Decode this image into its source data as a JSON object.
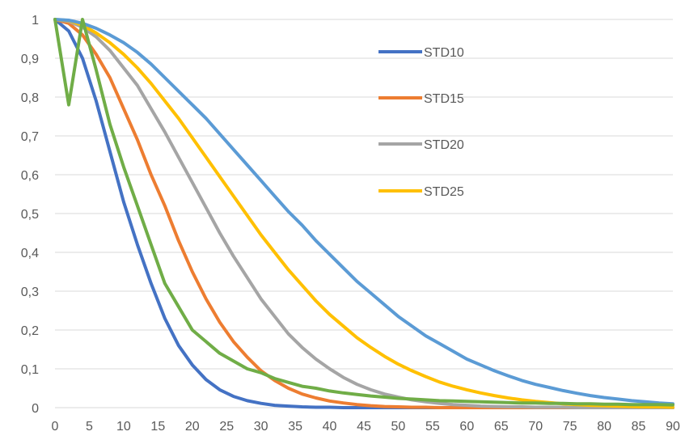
{
  "chart_data": {
    "type": "line",
    "title": "",
    "xlabel": "",
    "ylabel": "",
    "xlim": [
      0,
      90
    ],
    "ylim": [
      0,
      1
    ],
    "x_ticks": [
      "0",
      "5",
      "10",
      "15",
      "20",
      "25",
      "30",
      "35",
      "40",
      "45",
      "50",
      "55",
      "60",
      "65",
      "70",
      "75",
      "80",
      "85",
      "90"
    ],
    "y_ticks": [
      "0",
      "0,1",
      "0,2",
      "0,3",
      "0,4",
      "0,5",
      "0,6",
      "0,7",
      "0,8",
      "0,9",
      "1"
    ],
    "grid": "horizontal",
    "legend_position": "top-right",
    "x": [
      0,
      2,
      4,
      6,
      8,
      10,
      12,
      14,
      16,
      18,
      20,
      22,
      24,
      26,
      28,
      30,
      32,
      34,
      36,
      38,
      40,
      42,
      44,
      46,
      48,
      50,
      52,
      54,
      56,
      58,
      60,
      62,
      64,
      66,
      68,
      70,
      72,
      74,
      76,
      78,
      80,
      82,
      84,
      86,
      88,
      90
    ],
    "series": [
      {
        "name": "STD10",
        "color": "#4472C4",
        "values": [
          1,
          0.97,
          0.9,
          0.79,
          0.66,
          0.53,
          0.42,
          0.32,
          0.23,
          0.16,
          0.11,
          0.072,
          0.046,
          0.029,
          0.018,
          0.011,
          0.006,
          0.004,
          0.002,
          0.001,
          0.001,
          0,
          0,
          0,
          0,
          0,
          0,
          0,
          0,
          0,
          0,
          0,
          0,
          0,
          0,
          0,
          0,
          0,
          0,
          0,
          0,
          0,
          0,
          0,
          0,
          0
        ]
      },
      {
        "name": "STD15",
        "color": "#ED7D31",
        "values": [
          1,
          0.99,
          0.96,
          0.91,
          0.85,
          0.77,
          0.69,
          0.6,
          0.52,
          0.43,
          0.35,
          0.28,
          0.22,
          0.17,
          0.13,
          0.095,
          0.07,
          0.05,
          0.035,
          0.025,
          0.017,
          0.012,
          0.008,
          0.005,
          0.003,
          0.002,
          0.001,
          0.001,
          0,
          0,
          0,
          0,
          0,
          0,
          0,
          0,
          0,
          0,
          0,
          0,
          0,
          0,
          0,
          0,
          0,
          0
        ]
      },
      {
        "name": "STD20",
        "color": "#A5A5A5",
        "values": [
          1,
          0.995,
          0.98,
          0.955,
          0.92,
          0.875,
          0.83,
          0.77,
          0.71,
          0.645,
          0.58,
          0.515,
          0.45,
          0.39,
          0.335,
          0.28,
          0.235,
          0.19,
          0.155,
          0.125,
          0.1,
          0.078,
          0.06,
          0.046,
          0.035,
          0.027,
          0.02,
          0.015,
          0.011,
          0.008,
          0.006,
          0.004,
          0.003,
          0.002,
          0.002,
          0.001,
          0.001,
          0.001,
          0,
          0,
          0,
          0,
          0,
          0,
          0,
          0
        ]
      },
      {
        "name": "STD25",
        "color": "#FFC000",
        "values": [
          1,
          0.997,
          0.985,
          0.965,
          0.94,
          0.91,
          0.875,
          0.835,
          0.79,
          0.745,
          0.695,
          0.645,
          0.595,
          0.545,
          0.495,
          0.445,
          0.4,
          0.355,
          0.315,
          0.275,
          0.24,
          0.21,
          0.18,
          0.155,
          0.132,
          0.112,
          0.095,
          0.08,
          0.066,
          0.055,
          0.046,
          0.038,
          0.031,
          0.025,
          0.02,
          0.016,
          0.013,
          0.01,
          0.008,
          0.006,
          0.005,
          0.004,
          0.003,
          0.002,
          0.002,
          0.001
        ]
      },
      {
        "name": "",
        "color": "#5B9BD5",
        "values": [
          1,
          0.998,
          0.99,
          0.977,
          0.96,
          0.94,
          0.915,
          0.885,
          0.85,
          0.815,
          0.78,
          0.745,
          0.705,
          0.665,
          0.625,
          0.585,
          0.545,
          0.505,
          0.47,
          0.43,
          0.395,
          0.36,
          0.325,
          0.295,
          0.265,
          0.235,
          0.21,
          0.185,
          0.165,
          0.145,
          0.125,
          0.11,
          0.095,
          0.082,
          0.07,
          0.06,
          0.052,
          0.044,
          0.037,
          0.031,
          0.026,
          0.022,
          0.018,
          0.015,
          0.012,
          0.01
        ]
      },
      {
        "name": "",
        "color": "#70AD47",
        "values": [
          1,
          0.78,
          1,
          0.87,
          0.73,
          0.62,
          0.52,
          0.42,
          0.32,
          0.26,
          0.2,
          0.17,
          0.14,
          0.12,
          0.1,
          0.09,
          0.075,
          0.065,
          0.055,
          0.05,
          0.043,
          0.038,
          0.034,
          0.03,
          0.027,
          0.024,
          0.022,
          0.02,
          0.018,
          0.017,
          0.016,
          0.015,
          0.014,
          0.013,
          0.012,
          0.012,
          0.011,
          0.011,
          0.01,
          0.01,
          0.009,
          0.009,
          0.008,
          0.008,
          0.008,
          0.007
        ]
      }
    ]
  }
}
